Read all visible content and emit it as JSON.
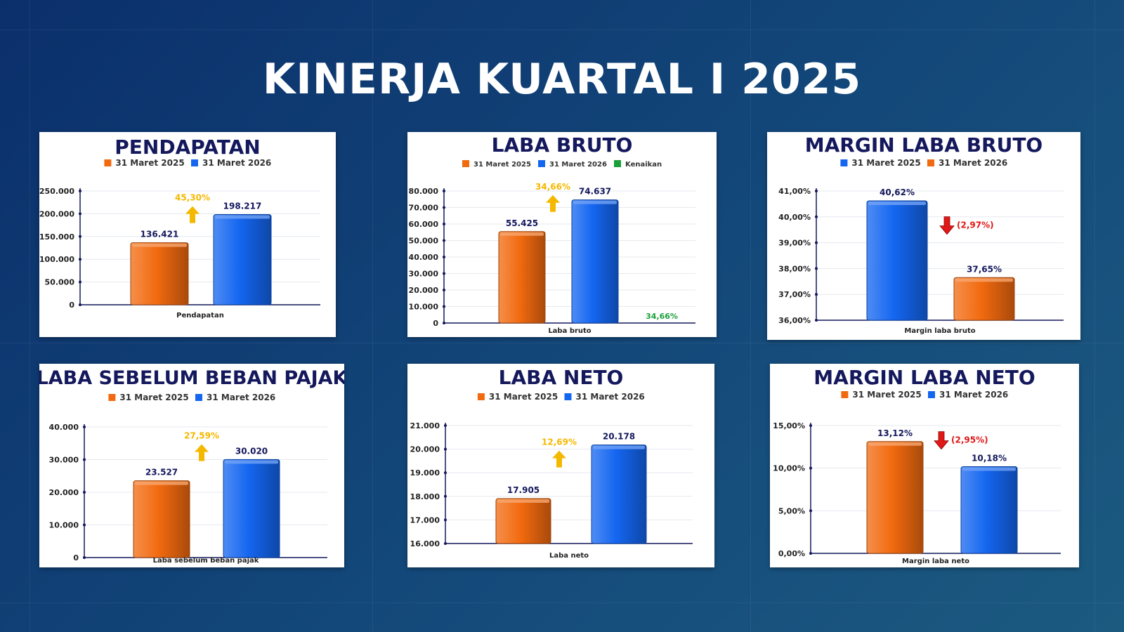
{
  "page": {
    "title": "KINERJA KUARTAL I 2025"
  },
  "colors": {
    "orange": "#f26a0f",
    "blue": "#1466f0",
    "navy": "#14185c",
    "up": "#f5b800",
    "down": "#e01818",
    "green": "#1aa03a"
  },
  "chart_data": [
    {
      "id": "pendapatan",
      "type": "bar",
      "title": "PENDAPATAN",
      "legend": [
        {
          "label": "31 Maret 2025",
          "color": "#f26a0f"
        },
        {
          "label": "31 Maret 2026",
          "color": "#1466f0"
        }
      ],
      "bars": [
        {
          "value": 136421,
          "label": "136.421",
          "color": "#f26a0f"
        },
        {
          "value": 198217,
          "label": "198.217",
          "color": "#1466f0"
        }
      ],
      "ylim": [
        0,
        250000
      ],
      "yticks": [
        "0",
        "50.000",
        "100.000",
        "150.000",
        "200.000",
        "250.000"
      ],
      "xlabel": "Pendapatan",
      "change": {
        "label": "45,30%",
        "direction": "up"
      }
    },
    {
      "id": "laba-bruto",
      "type": "bar",
      "title": "LABA BRUTO",
      "legend": [
        {
          "label": "31 Maret 2025",
          "color": "#f26a0f"
        },
        {
          "label": "31 Maret 2026",
          "color": "#1466f0"
        },
        {
          "label": "Kenaikan",
          "color": "#1aa03a"
        }
      ],
      "bars": [
        {
          "value": 55425,
          "label": "55.425",
          "color": "#f26a0f"
        },
        {
          "value": 74637,
          "label": "74.637",
          "color": "#1466f0"
        }
      ],
      "ylim": [
        0,
        80000
      ],
      "yticks": [
        "0",
        "10.000",
        "20.000",
        "30.000",
        "40.000",
        "50.000",
        "60.000",
        "70.000",
        "80.000"
      ],
      "xlabel": "Laba bruto",
      "change": {
        "label": "34,66%",
        "direction": "up"
      },
      "extra_label": "34,66%"
    },
    {
      "id": "margin-laba-bruto",
      "type": "bar",
      "title": "MARGIN LABA BRUTO",
      "legend": [
        {
          "label": "31 Maret 2025",
          "color": "#1466f0"
        },
        {
          "label": "31 Maret 2026",
          "color": "#f26a0f"
        }
      ],
      "bars": [
        {
          "value": 40.62,
          "label": "40,62%",
          "color": "#1466f0"
        },
        {
          "value": 37.65,
          "label": "37,65%",
          "color": "#f26a0f"
        }
      ],
      "ylim": [
        36,
        41
      ],
      "yticks": [
        "36,00%",
        "37,00%",
        "38,00%",
        "39,00%",
        "40,00%",
        "41,00%"
      ],
      "xlabel": "Margin laba bruto",
      "change": {
        "label": "(2,97%)",
        "direction": "down"
      }
    },
    {
      "id": "laba-sebelum-beban-pajak",
      "type": "bar",
      "title": "LABA SEBELUM BEBAN PAJAK",
      "legend": [
        {
          "label": "31 Maret 2025",
          "color": "#f26a0f"
        },
        {
          "label": "31 Maret 2026",
          "color": "#1466f0"
        }
      ],
      "bars": [
        {
          "value": 23527,
          "label": "23.527",
          "color": "#f26a0f"
        },
        {
          "value": 30020,
          "label": "30.020",
          "color": "#1466f0"
        }
      ],
      "ylim": [
        0,
        40000
      ],
      "yticks": [
        "0",
        "10.000",
        "20.000",
        "30.000",
        "40.000"
      ],
      "xlabel": "Laba sebelum beban pajak",
      "change": {
        "label": "27,59%",
        "direction": "up"
      }
    },
    {
      "id": "laba-neto",
      "type": "bar",
      "title": "LABA NETO",
      "legend": [
        {
          "label": "31 Maret 2025",
          "color": "#f26a0f"
        },
        {
          "label": "31 Maret 2026",
          "color": "#1466f0"
        }
      ],
      "bars": [
        {
          "value": 17905,
          "label": "17.905",
          "color": "#f26a0f"
        },
        {
          "value": 20178,
          "label": "20.178",
          "color": "#1466f0"
        }
      ],
      "ylim": [
        16000,
        21000
      ],
      "yticks": [
        "16.000",
        "17.000",
        "18.000",
        "19.000",
        "20.000",
        "21.000"
      ],
      "xlabel": "Laba neto",
      "change": {
        "label": "12,69%",
        "direction": "up"
      }
    },
    {
      "id": "margin-laba-neto",
      "type": "bar",
      "title": "MARGIN LABA NETO",
      "legend": [
        {
          "label": "31 Maret 2025",
          "color": "#f26a0f"
        },
        {
          "label": "31 Maret 2026",
          "color": "#1466f0"
        }
      ],
      "bars": [
        {
          "value": 13.12,
          "label": "13,12%",
          "color": "#f26a0f"
        },
        {
          "value": 10.18,
          "label": "10,18%",
          "color": "#1466f0"
        }
      ],
      "ylim": [
        0,
        15
      ],
      "yticks": [
        "0,00%",
        "5,00%",
        "10,00%",
        "15,00%"
      ],
      "xlabel": "Margin laba neto",
      "change": {
        "label": "(2,95%)",
        "direction": "down"
      }
    }
  ]
}
